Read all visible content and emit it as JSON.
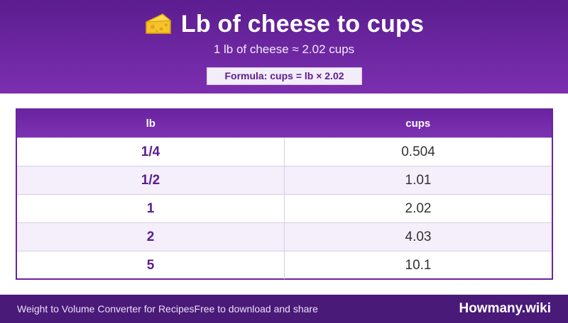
{
  "header": {
    "icon": "cheese-icon",
    "title": "Lb of cheese to cups",
    "subtitle": "1 lb of cheese ≈ 2.02 cups",
    "formula": "Formula: cups = lb × 2.02"
  },
  "table": {
    "columns": [
      "lb",
      "cups"
    ],
    "rows": [
      {
        "lb": "1/4",
        "cups": "0.504"
      },
      {
        "lb": "1/2",
        "cups": "1.01"
      },
      {
        "lb": "1",
        "cups": "2.02"
      },
      {
        "lb": "2",
        "cups": "4.03"
      },
      {
        "lb": "5",
        "cups": "10.1"
      }
    ]
  },
  "footer": {
    "left": "Weight to Volume Converter for Recipes",
    "mid": "Free to download and share",
    "brand": "Howmany.wiki"
  },
  "colors": {
    "header_bg": "#6a24a0",
    "footer_bg": "#4a1a78",
    "accent": "#5b1d8f",
    "alt_row": "#f4effa"
  }
}
